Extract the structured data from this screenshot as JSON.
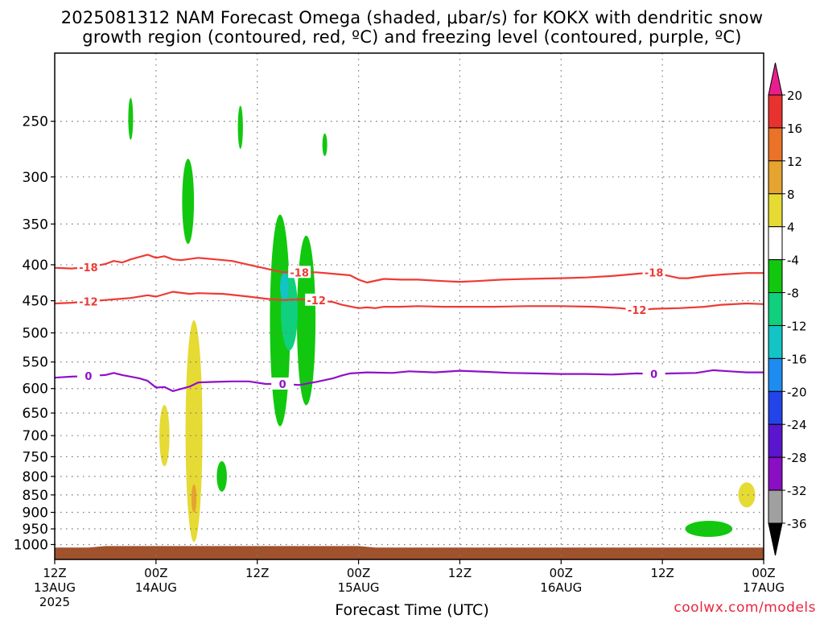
{
  "title_line1": "2025081312 NAM Forecast Omega (shaded, μbar/s) for KOKX with dendritic snow",
  "title_line2": "growth region (contoured, red, ºC) and freezing level (contoured, purple, ºC)",
  "credit": "coolwx.com/models",
  "chart_data": {
    "type": "heatmap",
    "xlabel": "Forecast Time (UTC)",
    "ylabel": "",
    "y_axis": {
      "scale": "log-pressure",
      "ylim": [
        1050,
        200
      ],
      "ticks": [
        250,
        300,
        350,
        400,
        450,
        500,
        550,
        600,
        650,
        700,
        750,
        800,
        850,
        900,
        950,
        1000
      ]
    },
    "x_axis": {
      "xlim_hours": [
        0,
        84
      ],
      "ticks": [
        {
          "hour": 0,
          "lines": [
            "12Z",
            "13AUG",
            "2025"
          ]
        },
        {
          "hour": 12,
          "lines": [
            "00Z",
            "14AUG"
          ]
        },
        {
          "hour": 24,
          "lines": [
            "12Z"
          ]
        },
        {
          "hour": 36,
          "lines": [
            "00Z",
            "15AUG"
          ]
        },
        {
          "hour": 48,
          "lines": [
            "12Z"
          ]
        },
        {
          "hour": 60,
          "lines": [
            "00Z",
            "16AUG"
          ]
        },
        {
          "hour": 72,
          "lines": [
            "12Z"
          ]
        },
        {
          "hour": 84,
          "lines": [
            "00Z",
            "17AUG"
          ]
        }
      ]
    },
    "grid": true,
    "colorbar": {
      "labels": [
        "20",
        "16",
        "12",
        "8",
        "4",
        "-4",
        "-8",
        "-12",
        "-16",
        "-20",
        "-24",
        "-28",
        "-32",
        "-36"
      ],
      "colors": [
        "#e91e8c",
        "#e8322e",
        "#ea7327",
        "#e5a330",
        "#e6da34",
        "#ffffff",
        "#11c80f",
        "#10cf7d",
        "#12c4c4",
        "#1d8cf0",
        "#2244e8",
        "#5a16cc",
        "#8a0ec2",
        "#a0a0a0",
        "#000000"
      ]
    },
    "contours": [
      {
        "label": "-18",
        "color": "#ee3a34",
        "points": [
          [
            0,
            404
          ],
          [
            2,
            405
          ],
          [
            4,
            403
          ],
          [
            6,
            399
          ],
          [
            7,
            395
          ],
          [
            8,
            397
          ],
          [
            9,
            393
          ],
          [
            11,
            387
          ],
          [
            12,
            391
          ],
          [
            13,
            389
          ],
          [
            14,
            393
          ],
          [
            15,
            394
          ],
          [
            17,
            391
          ],
          [
            19,
            393
          ],
          [
            21,
            395
          ],
          [
            23,
            400
          ],
          [
            25,
            405
          ],
          [
            27,
            410
          ],
          [
            29,
            410
          ],
          [
            31,
            410
          ],
          [
            33,
            412
          ],
          [
            35,
            414
          ],
          [
            36,
            420
          ],
          [
            37,
            424
          ],
          [
            39,
            419
          ],
          [
            41,
            420
          ],
          [
            43,
            420
          ],
          [
            46,
            422
          ],
          [
            48,
            423
          ],
          [
            50,
            422
          ],
          [
            53,
            420
          ],
          [
            56,
            419
          ],
          [
            60,
            418
          ],
          [
            63,
            417
          ],
          [
            66,
            415
          ],
          [
            69,
            412
          ],
          [
            71,
            410
          ],
          [
            72,
            413
          ],
          [
            74,
            418
          ],
          [
            75,
            418
          ],
          [
            77,
            415
          ],
          [
            79,
            413
          ],
          [
            82,
            411
          ],
          [
            84,
            411
          ]
        ]
      },
      {
        "label": "-12",
        "color": "#ee3a34",
        "points": [
          [
            0,
            454
          ],
          [
            2,
            453
          ],
          [
            4,
            451
          ],
          [
            7,
            448
          ],
          [
            9,
            446
          ],
          [
            11,
            442
          ],
          [
            12,
            444
          ],
          [
            14,
            437
          ],
          [
            16,
            440
          ],
          [
            17,
            439
          ],
          [
            20,
            440
          ],
          [
            23,
            444
          ],
          [
            25,
            447
          ],
          [
            27,
            449
          ],
          [
            29,
            448
          ],
          [
            31,
            449
          ],
          [
            33,
            452
          ],
          [
            34,
            456
          ],
          [
            36,
            461
          ],
          [
            37,
            460
          ],
          [
            38,
            461
          ],
          [
            39,
            459
          ],
          [
            41,
            459
          ],
          [
            43,
            458
          ],
          [
            46,
            459
          ],
          [
            49,
            459
          ],
          [
            52,
            459
          ],
          [
            56,
            458
          ],
          [
            60,
            458
          ],
          [
            64,
            459
          ],
          [
            67,
            461
          ],
          [
            69,
            464
          ],
          [
            71,
            462
          ],
          [
            74,
            461
          ],
          [
            77,
            459
          ],
          [
            79,
            456
          ],
          [
            82,
            454
          ],
          [
            84,
            455
          ]
        ]
      },
      {
        "label": "0",
        "color": "#9010c8",
        "points": [
          [
            0,
            579
          ],
          [
            2,
            577
          ],
          [
            4,
            576
          ],
          [
            6,
            574
          ],
          [
            7,
            570
          ],
          [
            8,
            574
          ],
          [
            10,
            580
          ],
          [
            11,
            585
          ],
          [
            12,
            598
          ],
          [
            13,
            597
          ],
          [
            14,
            605
          ],
          [
            16,
            596
          ],
          [
            17,
            588
          ],
          [
            19,
            587
          ],
          [
            21,
            586
          ],
          [
            23,
            586
          ],
          [
            25,
            591
          ],
          [
            27,
            591
          ],
          [
            29,
            593
          ],
          [
            31,
            587
          ],
          [
            33,
            580
          ],
          [
            34,
            575
          ],
          [
            35,
            571
          ],
          [
            37,
            569
          ],
          [
            40,
            570
          ],
          [
            42,
            567
          ],
          [
            45,
            569
          ],
          [
            48,
            566
          ],
          [
            51,
            568
          ],
          [
            54,
            570
          ],
          [
            57,
            571
          ],
          [
            60,
            572
          ],
          [
            63,
            572
          ],
          [
            66,
            573
          ],
          [
            69,
            571
          ],
          [
            71,
            572
          ],
          [
            73,
            571
          ],
          [
            76,
            570
          ],
          [
            78,
            565
          ],
          [
            80,
            567
          ],
          [
            82,
            569
          ],
          [
            84,
            569
          ]
        ]
      }
    ],
    "omega_regions": [
      {
        "value": -5,
        "color": "#11c80f",
        "center": [
          9.0,
          248
        ],
        "half_width_h": 0.25,
        "half_height_hpa": 17
      },
      {
        "value": -5,
        "color": "#11c80f",
        "center": [
          22.0,
          255
        ],
        "half_width_h": 0.3,
        "half_height_hpa": 18
      },
      {
        "value": -5,
        "color": "#11c80f",
        "center": [
          32.0,
          270
        ],
        "half_width_h": 0.2,
        "half_height_hpa": 10
      },
      {
        "value": -6,
        "color": "#11c80f",
        "center": [
          15.8,
          325
        ],
        "half_width_h": 0.7,
        "half_height_hpa": 45
      },
      {
        "value": -6,
        "color": "#11c80f",
        "center": [
          19.8,
          800
        ],
        "half_width_h": 0.6,
        "half_height_hpa": 40
      },
      {
        "value": -7,
        "color": "#11c80f",
        "center": [
          26.7,
          480
        ],
        "half_width_h": 1.2,
        "half_height_hpa": 160
      },
      {
        "value": -7,
        "color": "#11c80f",
        "center": [
          29.8,
          480
        ],
        "half_width_h": 1.1,
        "half_height_hpa": 130
      },
      {
        "value": -10,
        "color": "#10cf7d",
        "center": [
          27.8,
          465
        ],
        "half_width_h": 1.0,
        "half_height_hpa": 60
      },
      {
        "value": -14,
        "color": "#12c4c4",
        "center": [
          27.2,
          430
        ],
        "half_width_h": 0.5,
        "half_height_hpa": 20
      },
      {
        "value": 5,
        "color": "#e6da34",
        "center": [
          13.0,
          700
        ],
        "half_width_h": 0.6,
        "half_height_hpa": 70
      },
      {
        "value": 5,
        "color": "#e6da34",
        "center": [
          16.5,
          690
        ],
        "half_width_h": 1.0,
        "half_height_hpa": 240
      },
      {
        "value": 9,
        "color": "#e5a330",
        "center": [
          16.5,
          860
        ],
        "half_width_h": 0.3,
        "half_height_hpa": 40
      },
      {
        "value": 5,
        "color": "#e6da34",
        "center": [
          82.0,
          850
        ],
        "half_width_h": 1.0,
        "half_height_hpa": 35
      },
      {
        "value": -6,
        "color": "#11c80f",
        "center": [
          77.5,
          950
        ],
        "half_width_h": 2.8,
        "half_height_hpa": 25
      }
    ],
    "terrain": {
      "color": "#a0522d",
      "points": [
        [
          0,
          1010
        ],
        [
          4,
          1010
        ],
        [
          6,
          1005
        ],
        [
          36,
          1005
        ],
        [
          38,
          1010
        ],
        [
          84,
          1010
        ]
      ]
    }
  }
}
